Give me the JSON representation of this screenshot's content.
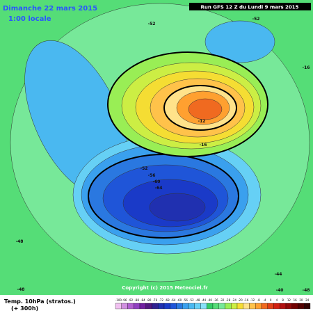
{
  "header": {
    "valid_date": "Dimanche 22 mars 2015",
    "local_time": "1:00 locale",
    "run": "Run GFS 12 Z du Lundi 9 mars 2015"
  },
  "footer": {
    "field": "Temp. 10hPa (stratos.)",
    "forecast": "(+ 300h)",
    "copyright": "Copyright (c) 2015 Meteociel.fr"
  },
  "map_labels": [
    "-52",
    "-52",
    "-16",
    "-48",
    "-52",
    "-56",
    "-60",
    "-64",
    "-12",
    "-16",
    "-48",
    "-44",
    "-40",
    "-48"
  ],
  "colorbar": {
    "levels": [
      "-100",
      "-96",
      "-92",
      "-88",
      "-84",
      "-80",
      "-76",
      "-72",
      "-68",
      "-64",
      "-60",
      "-56",
      "-52",
      "-48",
      "-44",
      "-40",
      "-36",
      "-32",
      "-28",
      "-24",
      "-20",
      "-16",
      "-12",
      "-8",
      "-4",
      "0",
      "4",
      "8",
      "12",
      "16",
      "20",
      "24"
    ],
    "colors": [
      "#f0c0f0",
      "#d090e0",
      "#b060d0",
      "#9040c0",
      "#7020a0",
      "#501880",
      "#302090",
      "#2030b0",
      "#1a3ac8",
      "#1f55d8",
      "#2a78e0",
      "#3aa0ee",
      "#4ab8f0",
      "#66d0f5",
      "#88e0f8",
      "#33cc66",
      "#55dd77",
      "#77e899",
      "#99ee55",
      "#ccee44",
      "#f5dd33",
      "#ffe28a",
      "#ffc24a",
      "#ffa030",
      "#f06a20",
      "#e04018",
      "#d02010",
      "#b01010",
      "#900808",
      "#700000",
      "#500000",
      "#300000"
    ]
  }
}
